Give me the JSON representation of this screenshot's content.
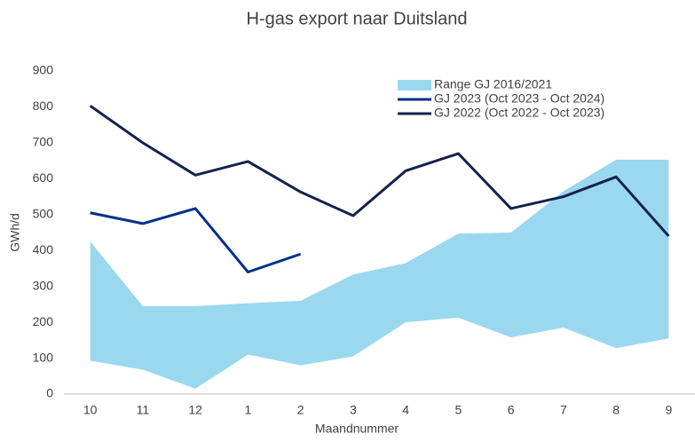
{
  "chart_data": {
    "type": "line",
    "title": "H-gas export naar Duitsland",
    "x_label": "Maandnummer",
    "y_label": "GWh/d",
    "categories": [
      "10",
      "11",
      "12",
      "1",
      "2",
      "3",
      "4",
      "5",
      "6",
      "7",
      "8",
      "9"
    ],
    "series": [
      {
        "name": "Range GJ 2016/2021",
        "color": "#9ad8f0",
        "kind": "range",
        "values": [
          425,
          245,
          245,
          253,
          260,
          333,
          365,
          447,
          450,
          565,
          653,
          653
        ],
        "lower": [
          93,
          68,
          15,
          110,
          80,
          105,
          200,
          213,
          158,
          185,
          128,
          155
        ]
      },
      {
        "name": "GJ 2023 (Oct 2023 - Oct 2024)",
        "color": "#003087",
        "values": [
          505,
          475,
          517,
          340,
          390,
          null,
          null,
          null,
          null,
          null,
          null,
          null
        ]
      },
      {
        "name": "GJ 2022 (Oct 2022 - Oct 2023)",
        "color": "#14214d",
        "values": [
          803,
          700,
          610,
          648,
          563,
          497,
          622,
          670,
          517,
          550,
          605,
          440
        ]
      }
    ],
    "ylim": [
      0,
      900
    ],
    "yticks": [
      0,
      100,
      200,
      300,
      400,
      500,
      600,
      700,
      800,
      900
    ],
    "grid": false
  }
}
